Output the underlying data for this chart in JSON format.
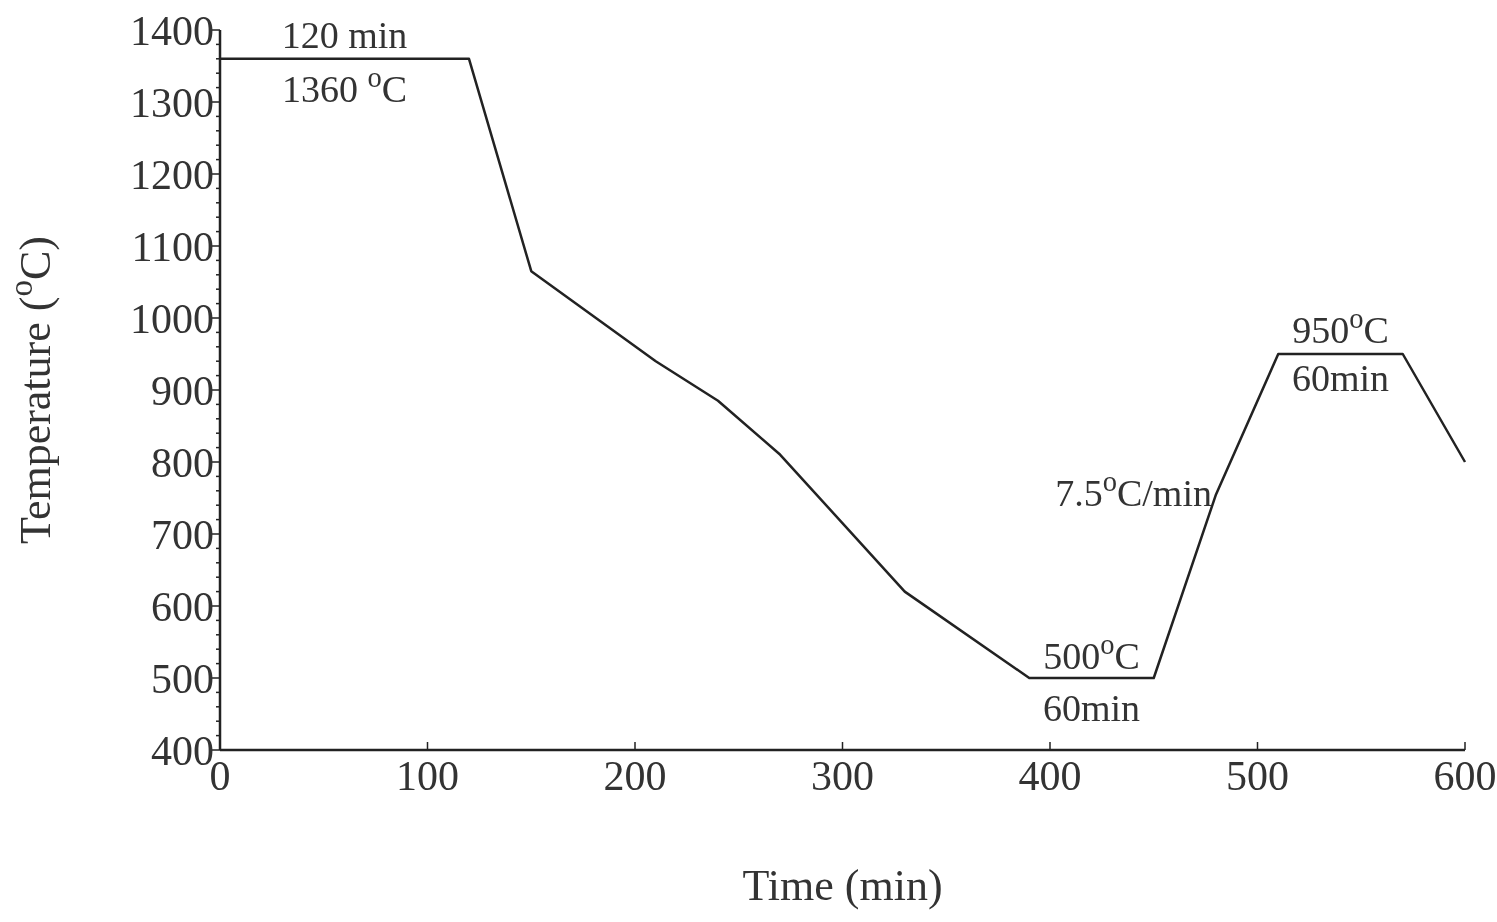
{
  "chart_data": {
    "type": "line",
    "xlabel": "Time (min)",
    "ylabel": "Temperature ($^{o}$C)",
    "x": [
      0,
      120,
      150,
      210,
      240,
      270,
      330,
      390,
      450,
      480,
      510,
      570,
      600
    ],
    "series": [
      {
        "color": "#222222",
        "values": [
          1360,
          1360,
          1065,
          940,
          885,
          810,
          620,
          500,
          500,
          755,
          950,
          950,
          800
        ]
      }
    ],
    "xlim": [
      0,
      600
    ],
    "xticks": [
      0,
      100,
      200,
      300,
      400,
      500,
      600
    ],
    "ylim": [
      400,
      1400
    ],
    "yticks": [
      400,
      {
        "value": 420,
        "label": null
      },
      {
        "value": 440,
        "label": null
      },
      {
        "value": 460,
        "label": null
      },
      {
        "value": 480,
        "label": null
      },
      500,
      {
        "value": 520,
        "label": null
      },
      {
        "value": 540,
        "label": null
      },
      {
        "value": 560,
        "label": null
      },
      {
        "value": 580,
        "label": null
      },
      600,
      {
        "value": 620,
        "label": null
      },
      {
        "value": 640,
        "label": null
      },
      {
        "value": 660,
        "label": null
      },
      {
        "value": 680,
        "label": null
      },
      700,
      {
        "value": 720,
        "label": null
      },
      {
        "value": 740,
        "label": null
      },
      {
        "value": 760,
        "label": null
      },
      {
        "value": 780,
        "label": null
      },
      800,
      {
        "value": 820,
        "label": null
      },
      {
        "value": 840,
        "label": null
      },
      {
        "value": 860,
        "label": null
      },
      {
        "value": 880,
        "label": null
      },
      900,
      {
        "value": 920,
        "label": null
      },
      {
        "value": 940,
        "label": null
      },
      {
        "value": 960,
        "label": null
      },
      {
        "value": 980,
        "label": null
      },
      1000,
      {
        "value": 1020,
        "label": null
      },
      {
        "value": 1040,
        "label": null
      },
      {
        "value": 1060,
        "label": null
      },
      {
        "value": 1080,
        "label": null
      },
      1100,
      {
        "value": 1120,
        "label": null
      },
      {
        "value": 1140,
        "label": null
      },
      {
        "value": 1160,
        "label": null
      },
      {
        "value": 1180,
        "label": null
      },
      1200,
      {
        "value": 1220,
        "label": null
      },
      {
        "value": 1240,
        "label": null
      },
      {
        "value": 1260,
        "label": null
      },
      {
        "value": 1280,
        "label": null
      },
      1300,
      {
        "value": 1320,
        "label": null
      },
      {
        "value": 1340,
        "label": null
      },
      {
        "value": 1360,
        "label": null
      },
      {
        "value": 1380,
        "label": null
      },
      1400
    ],
    "grid": false,
    "marker": "none",
    "line_style": "solid",
    "annotations": [
      {
        "text": "120 min",
        "x": 60,
        "y": 1360
      },
      {
        "text": "1360 $^{o}$C",
        "x": 60,
        "y": 1360
      },
      {
        "text": "950$^{o}$C",
        "x": 540,
        "y": 950
      },
      {
        "text": "60min",
        "x": 540,
        "y": 950
      },
      {
        "text": "7.5$^{o}$C/min",
        "x": 480,
        "y": 755
      },
      {
        "text": "500$^{o}$C",
        "x": 420,
        "y": 500
      },
      {
        "text": "60min",
        "x": 420,
        "y": 500
      }
    ]
  }
}
